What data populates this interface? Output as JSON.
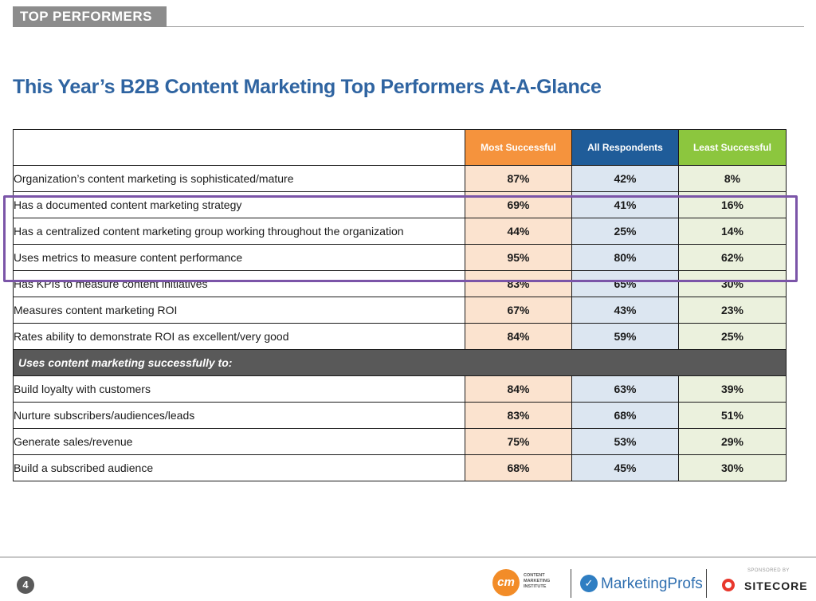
{
  "header": {
    "section_tag": "TOP PERFORMERS",
    "title": "This Year’s B2B Content Marketing Top Performers At-A-Glance"
  },
  "table": {
    "columns": [
      {
        "label": "Most Successful",
        "color": "#f5933d"
      },
      {
        "label": "All Respondents",
        "color": "#1f5c99"
      },
      {
        "label": "Least Successful",
        "color": "#8cc63e"
      }
    ],
    "rows_top": [
      {
        "label": "Organization’s content marketing is sophisticated/mature",
        "values": [
          "87%",
          "42%",
          "8%"
        ]
      },
      {
        "label": "Has a documented content marketing strategy",
        "values": [
          "69%",
          "41%",
          "16%"
        ]
      },
      {
        "label": "Has a centralized content marketing group working throughout the organization",
        "values": [
          "44%",
          "25%",
          "14%"
        ]
      },
      {
        "label": "Uses metrics to measure content performance",
        "values": [
          "95%",
          "80%",
          "62%"
        ]
      },
      {
        "label": "Has KPIs to measure content initiatives",
        "values": [
          "83%",
          "65%",
          "30%"
        ]
      },
      {
        "label": "Measures content marketing ROI",
        "values": [
          "67%",
          "43%",
          "23%"
        ]
      },
      {
        "label": "Rates ability to demonstrate ROI as excellent/very good",
        "values": [
          "84%",
          "59%",
          "25%"
        ]
      }
    ],
    "section_label": "Uses content marketing successfully to:",
    "rows_bottom": [
      {
        "label": "Build loyalty with customers",
        "values": [
          "84%",
          "63%",
          "39%"
        ]
      },
      {
        "label": "Nurture subscribers/audiences/leads",
        "values": [
          "83%",
          "68%",
          "51%"
        ]
      },
      {
        "label": "Generate sales/revenue",
        "values": [
          "75%",
          "53%",
          "29%"
        ]
      },
      {
        "label": "Build a subscribed audience",
        "values": [
          "68%",
          "45%",
          "30%"
        ]
      }
    ],
    "highlight_color": "#7b55a8"
  },
  "footer": {
    "page_number": "4",
    "cmi_logo": {
      "mark": "cm",
      "text": "CONTENT MARKETING INSTITUTE",
      "color": "#f28c28"
    },
    "marketingprofs_logo": {
      "text": "MarketingProfs",
      "color": "#2f6fb0"
    },
    "sponsor": {
      "label": "SPONSORED BY",
      "name": "SITECORE",
      "color": "#e8382d"
    }
  }
}
